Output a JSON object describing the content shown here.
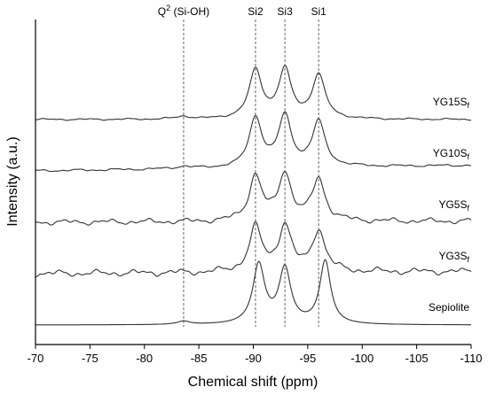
{
  "chart_data": {
    "type": "line",
    "xlabel": "Chemical shift (ppm)",
    "ylabel": "Intensity (a.u.)",
    "xlim": [
      -70,
      -110
    ],
    "x_reversed": true,
    "y_ticks_shown": false,
    "grid": false,
    "x_ticks": [
      -70,
      -75,
      -80,
      -85,
      -90,
      -95,
      -100,
      -105,
      -110
    ],
    "x_tick_labels": [
      "-70",
      "-75",
      "-80",
      "-85",
      "-90",
      "-95",
      "-100",
      "-105",
      "-110"
    ],
    "reference_lines": [
      {
        "x": -83.6,
        "label": "Q",
        "sup": "2",
        "suffix": " (Si-OH)"
      },
      {
        "x": -90.2,
        "label": "Si2"
      },
      {
        "x": -92.9,
        "label": "Si3"
      },
      {
        "x": -96.0,
        "label": "Si1"
      }
    ],
    "series": [
      {
        "name": "YG15Sf",
        "label_main": "YG15S",
        "label_sub": "f",
        "offset": 4,
        "peaks": [
          {
            "x": -83.6,
            "h": 0.05,
            "w": 0.8
          },
          {
            "x": -90.2,
            "h": 0.88,
            "w": 0.7
          },
          {
            "x": -92.9,
            "h": 0.88,
            "w": 0.7
          },
          {
            "x": -96.0,
            "h": 0.8,
            "w": 0.7
          }
        ],
        "noise": 0.02,
        "baseline_right": 0.0
      },
      {
        "name": "YG10Sf",
        "label_main": "YG10S",
        "label_sub": "f",
        "offset": 3,
        "peaks": [
          {
            "x": -83.6,
            "h": 0.04,
            "w": 0.8
          },
          {
            "x": -90.2,
            "h": 0.9,
            "w": 0.7
          },
          {
            "x": -92.9,
            "h": 0.92,
            "w": 0.7
          },
          {
            "x": -96.0,
            "h": 0.82,
            "w": 0.7
          }
        ],
        "noise": 0.025,
        "baseline_right": 0.1
      },
      {
        "name": "YG5Sf",
        "label_main": "YG5S",
        "label_sub": "f",
        "offset": 2,
        "peaks": [
          {
            "x": -90.2,
            "h": 0.82,
            "w": 0.7
          },
          {
            "x": -92.9,
            "h": 0.86,
            "w": 0.7
          },
          {
            "x": -96.0,
            "h": 0.76,
            "w": 0.7
          }
        ],
        "noise": 0.06,
        "baseline_right": 0.02
      },
      {
        "name": "YG3Sf",
        "label_main": "YG3S",
        "label_sub": "f",
        "offset": 1,
        "peaks": [
          {
            "x": -90.2,
            "h": 0.8,
            "w": 0.7
          },
          {
            "x": -92.9,
            "h": 0.84,
            "w": 0.7
          },
          {
            "x": -96.0,
            "h": 0.76,
            "w": 0.7
          }
        ],
        "noise": 0.07,
        "baseline_right": 0.04
      },
      {
        "name": "Sepiolite",
        "label_main": "Sepiolite",
        "label_sub": "",
        "offset": 0,
        "peaks": [
          {
            "x": -83.6,
            "h": 0.06,
            "w": 0.7
          },
          {
            "x": -90.5,
            "h": 1.08,
            "w": 0.65
          },
          {
            "x": -92.9,
            "h": 1.0,
            "w": 0.65
          },
          {
            "x": -96.6,
            "h": 1.15,
            "w": 0.6
          }
        ],
        "noise": 0.0,
        "baseline_right": 0.0
      }
    ]
  }
}
